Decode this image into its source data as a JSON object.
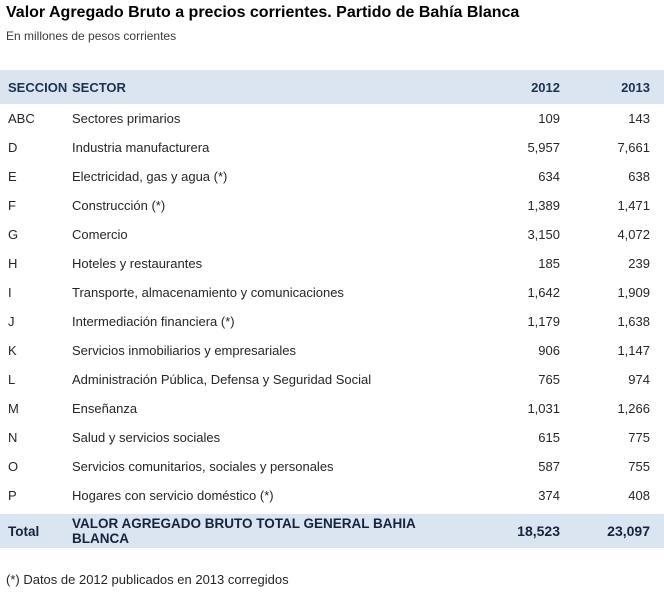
{
  "page": {
    "title": "Valor Agregado Bruto a precios corrientes. Partido de Bahía Blanca",
    "subtitle": "En millones de pesos corrientes",
    "footnote": "(*) Datos de 2012 publicados en 2013 corregidos"
  },
  "colors": {
    "band_background": "#dbe5f1",
    "header_text": "#1f3150",
    "body_text": "#262626",
    "title_text": "#000000"
  },
  "table": {
    "columns": {
      "seccion": "SECCION",
      "sector": "SECTOR",
      "y2012": "2012",
      "y2013": "2013"
    },
    "rows": [
      {
        "seccion": "ABC",
        "sector": "Sectores primarios",
        "y2012": "109",
        "y2013": "143"
      },
      {
        "seccion": "D",
        "sector": "Industria manufacturera",
        "y2012": "5,957",
        "y2013": "7,661"
      },
      {
        "seccion": "E",
        "sector": "Electricidad, gas y agua (*)",
        "y2012": "634",
        "y2013": "638"
      },
      {
        "seccion": "F",
        "sector": "Construcción (*)",
        "y2012": "1,389",
        "y2013": "1,471"
      },
      {
        "seccion": "G",
        "sector": "Comercio",
        "y2012": "3,150",
        "y2013": "4,072"
      },
      {
        "seccion": "H",
        "sector": "Hoteles y restaurantes",
        "y2012": "185",
        "y2013": "239"
      },
      {
        "seccion": "I",
        "sector": "Transporte, almacenamiento y comunicaciones",
        "y2012": "1,642",
        "y2013": "1,909"
      },
      {
        "seccion": "J",
        "sector": "Intermediación financiera (*)",
        "y2012": "1,179",
        "y2013": "1,638"
      },
      {
        "seccion": "K",
        "sector": "Servicios inmobiliarios y empresariales",
        "y2012": "906",
        "y2013": "1,147"
      },
      {
        "seccion": "L",
        "sector": "Administración Pública, Defensa y Seguridad Social",
        "y2012": "765",
        "y2013": "974"
      },
      {
        "seccion": "M",
        "sector": "Enseñanza",
        "y2012": "1,031",
        "y2013": "1,266"
      },
      {
        "seccion": "N",
        "sector": "Salud y servicios sociales",
        "y2012": "615",
        "y2013": "775"
      },
      {
        "seccion": "O",
        "sector": "Servicios comunitarios, sociales y personales",
        "y2012": "587",
        "y2013": "755"
      },
      {
        "seccion": "P",
        "sector": "Hogares con servicio doméstico (*)",
        "y2012": "374",
        "y2013": "408"
      }
    ],
    "total": {
      "seccion": "Total",
      "sector": "VALOR AGREGADO BRUTO TOTAL GENERAL BAHIA BLANCA",
      "y2012": "18,523",
      "y2013": "23,097"
    }
  },
  "chart_data": {
    "type": "table",
    "title": "Valor Agregado Bruto a precios corrientes. Partido de Bahía Blanca",
    "subtitle": "En millones de pesos corrientes",
    "categories": [
      "ABC",
      "D",
      "E",
      "F",
      "G",
      "H",
      "I",
      "J",
      "K",
      "L",
      "M",
      "N",
      "O",
      "P"
    ],
    "category_labels": [
      "Sectores primarios",
      "Industria manufacturera",
      "Electricidad, gas y agua (*)",
      "Construcción (*)",
      "Comercio",
      "Hoteles y restaurantes",
      "Transporte, almacenamiento y comunicaciones",
      "Intermediación financiera (*)",
      "Servicios inmobiliarios y empresariales",
      "Administración Pública, Defensa y Seguridad Social",
      "Enseñanza",
      "Salud y servicios sociales",
      "Servicios comunitarios, sociales y personales",
      "Hogares con servicio doméstico (*)"
    ],
    "series": [
      {
        "name": "2012",
        "values": [
          109,
          5957,
          634,
          1389,
          3150,
          185,
          1642,
          1179,
          906,
          765,
          1031,
          615,
          587,
          374
        ],
        "total": 18523
      },
      {
        "name": "2013",
        "values": [
          143,
          7661,
          638,
          1471,
          4072,
          239,
          1909,
          1638,
          1147,
          974,
          1266,
          775,
          755,
          408
        ],
        "total": 23097
      }
    ],
    "total_label": "VALOR AGREGADO BRUTO TOTAL GENERAL BAHIA BLANCA",
    "units": "millones de pesos corrientes",
    "footnote": "(*) Datos de 2012 publicados en 2013 corregidos"
  }
}
